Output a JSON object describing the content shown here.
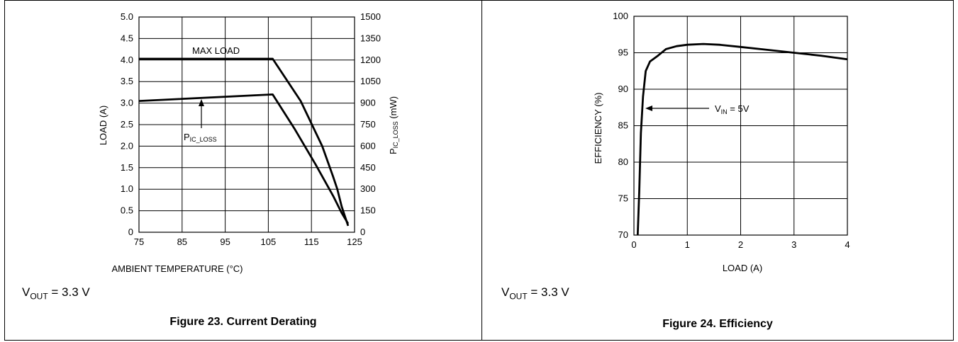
{
  "chart_data": [
    {
      "type": "line",
      "xlabel": "AMBIENT TEMPERATURE (°C)",
      "ylabel": "LOAD (A)",
      "y2label": "P_IC_LOSS (mW)",
      "xlim": [
        75,
        125
      ],
      "ylim": [
        0,
        5
      ],
      "y2lim": [
        0,
        1500
      ],
      "x_ticks": [
        "75",
        "85",
        "95",
        "105",
        "115",
        "125"
      ],
      "y_ticks": [
        "0",
        "0.5",
        "1.0",
        "1.5",
        "2.0",
        "2.5",
        "3.0",
        "3.5",
        "4.0",
        "4.5",
        "5.0"
      ],
      "y2_ticks": [
        "0",
        "150",
        "300",
        "450",
        "600",
        "750",
        "900",
        "1050",
        "1200",
        "1350",
        "1500"
      ],
      "grid": true,
      "series": [
        {
          "name": "MAX LOAD",
          "axis": "left",
          "x": [
            75,
            106,
            112.5,
            117.5,
            120,
            121,
            122,
            123.5
          ],
          "y": [
            4.03,
            4.03,
            3.05,
            2.0,
            1.3,
            1.0,
            0.6,
            0.15
          ]
        },
        {
          "name": "P_IC_LOSS",
          "axis": "right",
          "x": [
            75,
            106,
            111,
            116,
            120,
            122,
            123.5
          ],
          "y": [
            915,
            960,
            725,
            470,
            255,
            135,
            60
          ]
        }
      ],
      "annotations": {
        "max_load_label": "MAX LOAD",
        "ploss_main": "P",
        "ploss_sub": "IC_LOSS"
      },
      "condition": {
        "main": "V",
        "sub": "OUT",
        "rest": " = 3.3 V"
      },
      "caption": "Figure 23. Current Derating"
    },
    {
      "type": "line",
      "xlabel": "LOAD (A)",
      "ylabel": "EFFICIENCY (%)",
      "xlim": [
        0,
        4
      ],
      "ylim": [
        70,
        100
      ],
      "x_ticks": [
        "0",
        "1",
        "2",
        "3",
        "4"
      ],
      "y_ticks": [
        "70",
        "75",
        "80",
        "85",
        "90",
        "95",
        "100"
      ],
      "grid": true,
      "series": [
        {
          "name": "VIN = 5V",
          "x": [
            0.07,
            0.1,
            0.13,
            0.17,
            0.22,
            0.3,
            0.45,
            0.6,
            0.8,
            1.0,
            1.3,
            1.6,
            2.0,
            2.5,
            3.0,
            3.5,
            4.0
          ],
          "y": [
            70,
            76,
            84,
            89,
            92.5,
            93.8,
            94.6,
            95.5,
            95.9,
            96.1,
            96.2,
            96.1,
            95.8,
            95.4,
            95.0,
            94.6,
            94.1
          ]
        }
      ],
      "annotations": {
        "vin_main": "V",
        "vin_sub": "IN",
        "vin_rest": " = 5V"
      },
      "condition": {
        "main": "V",
        "sub": "OUT",
        "rest": " = 3.3 V"
      },
      "caption": "Figure 24. Efficiency"
    }
  ]
}
